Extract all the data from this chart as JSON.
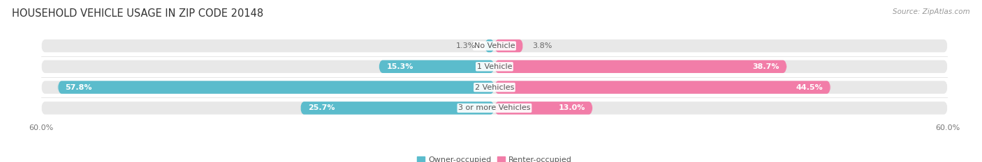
{
  "title": "HOUSEHOLD VEHICLE USAGE IN ZIP CODE 20148",
  "source": "Source: ZipAtlas.com",
  "categories": [
    "No Vehicle",
    "1 Vehicle",
    "2 Vehicles",
    "3 or more Vehicles"
  ],
  "owner_values": [
    1.3,
    15.3,
    57.8,
    25.7
  ],
  "renter_values": [
    3.8,
    38.7,
    44.5,
    13.0
  ],
  "owner_color": "#5bbccc",
  "renter_color": "#f27da8",
  "bar_bg_color": "#e8e8e8",
  "xlim": 60.0,
  "title_fontsize": 10.5,
  "source_fontsize": 7.5,
  "label_fontsize": 8.0,
  "value_fontsize": 8.0,
  "tick_fontsize": 8.0,
  "legend_fontsize": 8.0,
  "bar_height": 0.62,
  "background_color": "#ffffff",
  "rounding_size": 0.5
}
